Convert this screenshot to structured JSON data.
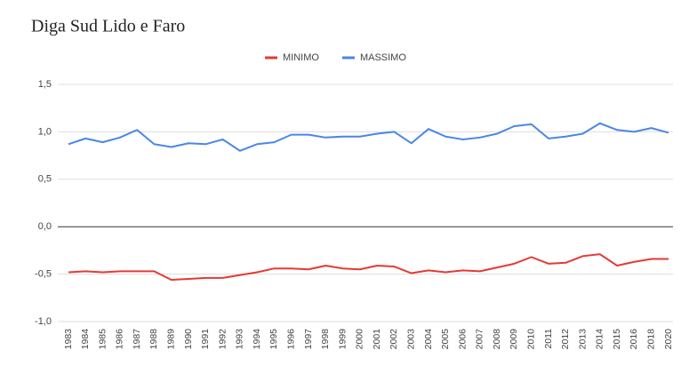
{
  "chart_data": {
    "type": "line",
    "title": "Diga Sud Lido e Faro",
    "categories": [
      "1983",
      "1984",
      "1985",
      "1986",
      "1987",
      "1988",
      "1989",
      "1990",
      "1991",
      "1992",
      "1993",
      "1994",
      "1995",
      "1996",
      "1997",
      "1998",
      "1999",
      "2000",
      "2001",
      "2002",
      "2003",
      "2004",
      "2005",
      "2006",
      "2007",
      "2008",
      "2009",
      "2010",
      "2011",
      "2012",
      "2013",
      "2014",
      "2015",
      "2016",
      "2018",
      "2020"
    ],
    "series": [
      {
        "name": "MINIMO",
        "color": "#e53935",
        "values": [
          -0.48,
          -0.47,
          -0.48,
          -0.47,
          -0.47,
          -0.47,
          -0.56,
          -0.55,
          -0.54,
          -0.54,
          -0.51,
          -0.48,
          -0.44,
          -0.44,
          -0.45,
          -0.41,
          -0.44,
          -0.45,
          -0.41,
          -0.42,
          -0.49,
          -0.46,
          -0.48,
          -0.46,
          -0.47,
          -0.43,
          -0.39,
          -0.32,
          -0.39,
          -0.38,
          -0.31,
          -0.29,
          -0.41,
          -0.37,
          -0.34,
          -0.34
        ]
      },
      {
        "name": "MASSIMO",
        "color": "#4a86e8",
        "values": [
          0.87,
          0.93,
          0.89,
          0.94,
          1.02,
          0.87,
          0.84,
          0.88,
          0.87,
          0.92,
          0.8,
          0.87,
          0.89,
          0.97,
          0.97,
          0.94,
          0.95,
          0.95,
          0.98,
          1.0,
          0.88,
          1.03,
          0.95,
          0.92,
          0.94,
          0.98,
          1.06,
          1.08,
          0.93,
          0.95,
          0.98,
          1.09,
          1.02,
          1.0,
          1.04,
          0.99
        ]
      }
    ],
    "ylim": [
      -1,
      1.5
    ],
    "yticks": [
      {
        "value": -1,
        "label": "-1,0"
      },
      {
        "value": -0.5,
        "label": "-0,5"
      },
      {
        "value": 0,
        "label": "0,0"
      },
      {
        "value": 0.5,
        "label": "0,5"
      },
      {
        "value": 1,
        "label": "1,0"
      },
      {
        "value": 1.5,
        "label": "1,5"
      }
    ],
    "grid": true,
    "legend": "top"
  }
}
